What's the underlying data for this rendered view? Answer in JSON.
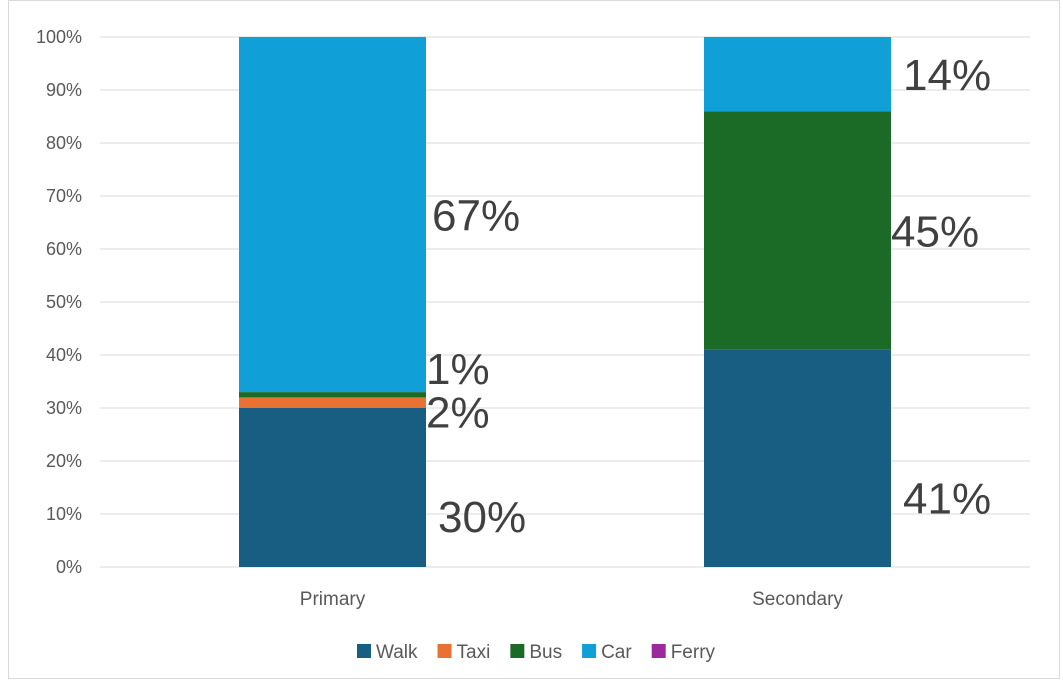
{
  "chart_data": {
    "type": "bar",
    "stacked": true,
    "percent_stacked": true,
    "categories": [
      "Primary",
      "Secondary"
    ],
    "series": [
      {
        "name": "Walk",
        "values": [
          30,
          41
        ],
        "color": "#175e82"
      },
      {
        "name": "Taxi",
        "values": [
          2,
          0
        ],
        "color": "#e97132"
      },
      {
        "name": "Bus",
        "values": [
          1,
          45
        ],
        "color": "#1b6b27"
      },
      {
        "name": "Car",
        "values": [
          67,
          14
        ],
        "color": "#109fd6"
      },
      {
        "name": "Ferry",
        "values": [
          0,
          0
        ],
        "color": "#9c2a9c"
      }
    ],
    "data_labels": [
      [
        {
          "text": "30%"
        },
        {
          "text": "41%"
        }
      ],
      [
        {
          "text": "2%"
        },
        null
      ],
      [
        {
          "text": "1%"
        },
        {
          "text": "45%"
        }
      ],
      [
        {
          "text": "67%"
        },
        {
          "text": "14%"
        }
      ],
      [
        null,
        null
      ]
    ],
    "y_ticks": [
      "0%",
      "10%",
      "20%",
      "30%",
      "40%",
      "50%",
      "60%",
      "70%",
      "80%",
      "90%",
      "100%"
    ],
    "ylim": [
      0,
      100
    ],
    "grid": true,
    "legend_position": "bottom",
    "title": "",
    "xlabel": "",
    "ylabel": ""
  }
}
